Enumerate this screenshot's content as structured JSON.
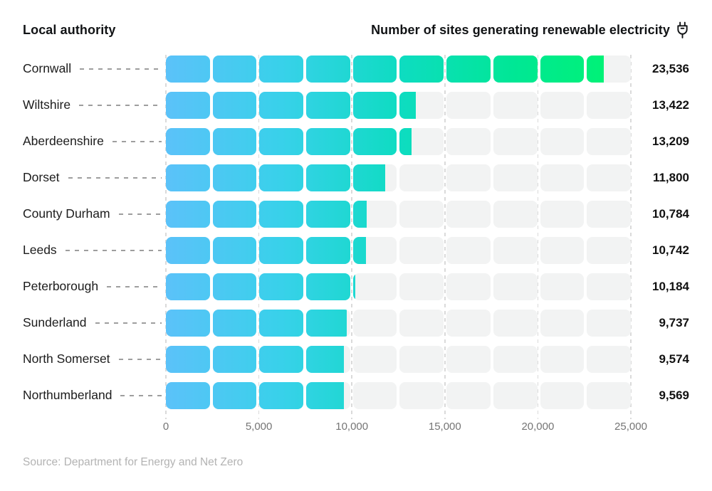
{
  "header": {
    "local_authority": "Local authority",
    "metric": "Number of sites generating renewable electricity",
    "metric_icon": "plug-icon"
  },
  "chart_data": {
    "type": "bar",
    "orientation": "horizontal",
    "title": "Number of sites generating renewable electricity",
    "category_header": "Local authority",
    "categories": [
      "Cornwall",
      "Wiltshire",
      "Aberdeenshire",
      "Dorset",
      "County Durham",
      "Leeds",
      "Peterborough",
      "Sunderland",
      "North Somerset",
      "Northumberland"
    ],
    "values": [
      23536,
      13422,
      13209,
      11800,
      10784,
      10742,
      10184,
      9737,
      9574,
      9569
    ],
    "value_labels": [
      "23,536",
      "13,422",
      "13,209",
      "11,800",
      "10,784",
      "10,742",
      "10,184",
      "9,737",
      "9,574",
      "9,569"
    ],
    "xlim": [
      0,
      25000
    ],
    "x_tick_values": [
      0,
      5000,
      10000,
      15000,
      20000,
      25000
    ],
    "x_tick_labels": [
      "0",
      "5,000",
      "10,000",
      "15,000",
      "20,000",
      "25,000"
    ],
    "segment_size": 2500,
    "segments_total": 10,
    "grid": "dashed vertical lines at x ticks",
    "legend": "none",
    "colors": {
      "gradient_stops": [
        "#5bc2f9",
        "#38d1ea",
        "#0edcc2",
        "#00e795",
        "#00f56e"
      ],
      "track": "#f2f3f3",
      "gridline": "#dadada",
      "value_text": "#111111",
      "axis_text": "#757575",
      "source_text": "#b3b3b3"
    }
  },
  "source": "Source: Department for Energy and Net Zero"
}
